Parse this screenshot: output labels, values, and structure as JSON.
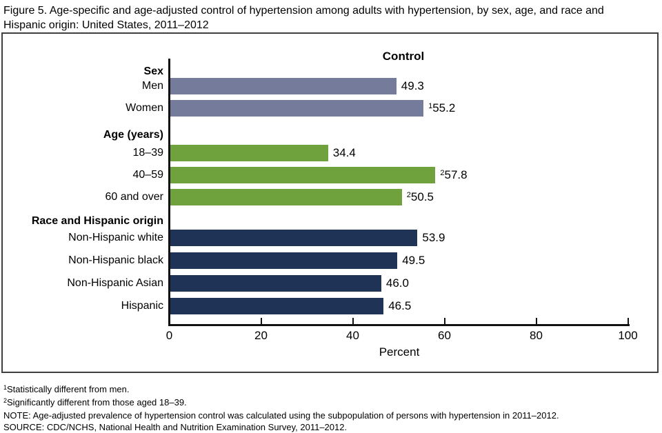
{
  "title": "Figure 5. Age-specific and age-adjusted control of hypertension among adults with hypertension, by sex, age, and race and Hispanic origin: United States, 2011–2012",
  "chart_data": {
    "type": "bar",
    "orientation": "horizontal",
    "title": "Control",
    "xlabel": "Percent",
    "xlim": [
      0,
      100
    ],
    "xticks": [
      0,
      20,
      40,
      60,
      80,
      100
    ],
    "grid": false,
    "legend": "none",
    "groups": [
      {
        "label": "Sex",
        "color": "#757b9a",
        "bars": [
          {
            "category": "Men",
            "value": 49.3,
            "value_label": "49.3",
            "sup": ""
          },
          {
            "category": "Women",
            "value": 55.2,
            "value_label": "55.2",
            "sup": "1"
          }
        ]
      },
      {
        "label": "Age (years)",
        "color": "#6fa13c",
        "bars": [
          {
            "category": "18–39",
            "value": 34.4,
            "value_label": "34.4",
            "sup": ""
          },
          {
            "category": "40–59",
            "value": 57.8,
            "value_label": "57.8",
            "sup": "2"
          },
          {
            "category": "60 and over",
            "value": 50.5,
            "value_label": "50.5",
            "sup": "2"
          }
        ]
      },
      {
        "label": "Race and Hispanic origin",
        "color": "#1f3357",
        "bars": [
          {
            "category": "Non-Hispanic white",
            "value": 53.9,
            "value_label": "53.9",
            "sup": ""
          },
          {
            "category": "Non-Hispanic black",
            "value": 49.5,
            "value_label": "49.5",
            "sup": ""
          },
          {
            "category": "Non-Hispanic Asian",
            "value": 46.0,
            "value_label": "46.0",
            "sup": ""
          },
          {
            "category": "Hispanic",
            "value": 46.5,
            "value_label": "46.5",
            "sup": ""
          }
        ]
      }
    ]
  },
  "footnotes": [
    {
      "sup": "1",
      "text": "Statistically different from men."
    },
    {
      "sup": "2",
      "text": "Significantly different from those aged 18–39."
    },
    {
      "sup": "",
      "text": "NOTE: Age-adjusted prevalence of hypertension control was calculated using the subpopulation of persons with hypertension in 2011–2012."
    },
    {
      "sup": "",
      "text": "SOURCE: CDC/NCHS, National Health and Nutrition Examination Survey, 2011–2012."
    }
  ]
}
